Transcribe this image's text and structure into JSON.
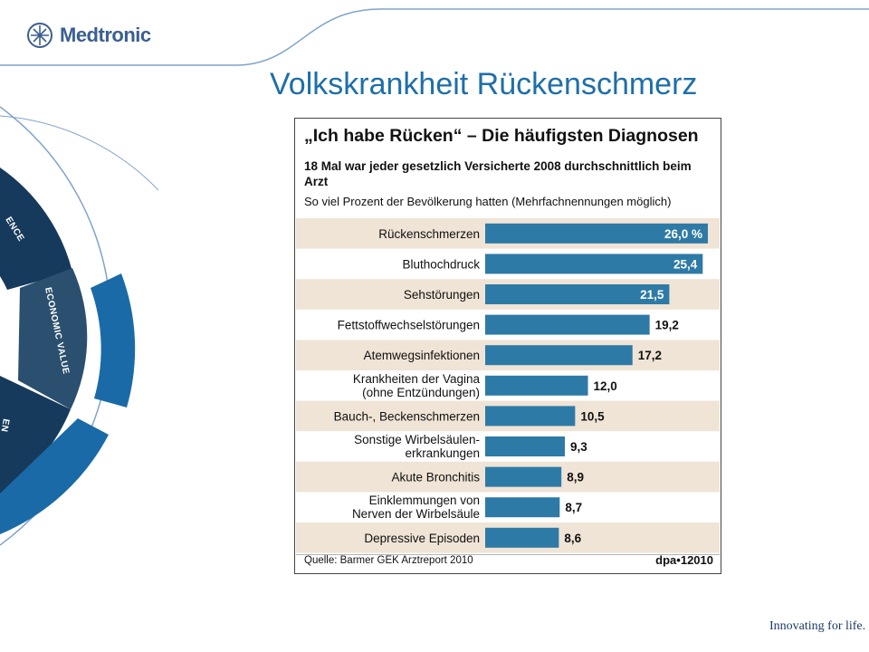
{
  "brand": {
    "name": "Medtronic",
    "tagline": "Innovating for life.",
    "colors": {
      "primary_blue": "#1e6fa8",
      "dark_navy": "#163a5c",
      "bar_blue": "#2e7aa6",
      "row_band": "#efe4d6"
    },
    "logo_icon": "medtronic-figure-icon"
  },
  "slide": {
    "title": "Volkskrankheit Rückenschmerz"
  },
  "wheel": {
    "labels": [
      "ENCE",
      "ECONOMIC VALUE",
      "EN"
    ]
  },
  "chart_data": {
    "type": "bar",
    "orientation": "horizontal",
    "title": "„Ich habe Rücken“ – Die häufigsten Diagnosen",
    "subtitle": "18 Mal war jeder gesetzlich Versicherte 2008 durchschnittlich beim Arzt",
    "note": "So viel Prozent der Bevölkerung hatten (Mehrfachnennungen möglich)",
    "categories": [
      "Rückenschmerzen",
      "Bluthochdruck",
      "Sehstörungen",
      "Fettstoffwechselstörungen",
      "Atemwegsinfektionen",
      "Krankheiten der Vagina\n(ohne Entzündungen)",
      "Bauch-, Beckenschmerzen",
      "Sonstige Wirbelsäulen-\nerkrankungen",
      "Akute Bronchitis",
      "Einklemmungen von\nNerven der Wirbelsäule",
      "Depressive Episoden"
    ],
    "values": [
      26.0,
      25.4,
      21.5,
      19.2,
      17.2,
      12.0,
      10.5,
      9.3,
      8.9,
      8.7,
      8.6
    ],
    "value_labels": [
      "26,0 %",
      "25,4",
      "21,5",
      "19,2",
      "17,2",
      "12,0",
      "10,5",
      "9,3",
      "8,9",
      "8,7",
      "8,6"
    ],
    "xlim": [
      0,
      26.0
    ],
    "grid": false,
    "legend": "none",
    "source": "Quelle: Barmer GEK Arztreport 2010",
    "credit": "dpa•12010"
  }
}
